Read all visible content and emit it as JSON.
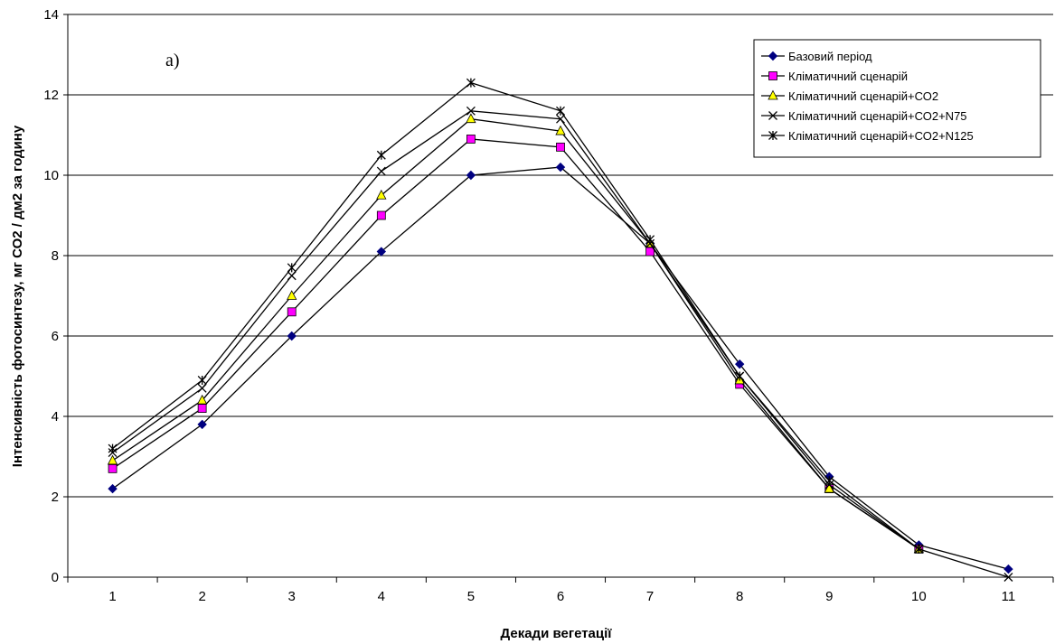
{
  "chart_data": {
    "type": "line",
    "panel_label": "а)",
    "xlabel": "Декади вегетації",
    "ylabel": "Інтенсивність фотосинтезу, мг СО2 / дм2 за годину",
    "categories": [
      "1",
      "2",
      "3",
      "4",
      "5",
      "6",
      "7",
      "8",
      "9",
      "10",
      "11"
    ],
    "ylim": [
      0,
      14
    ],
    "yticks": [
      "0",
      "2",
      "4",
      "6",
      "8",
      "10",
      "12",
      "14"
    ],
    "grid": "horizontal",
    "legend_position": "top-right",
    "series": [
      {
        "name": "Базовий період",
        "marker": "diamond",
        "color": "#000080",
        "values": [
          2.2,
          3.8,
          6.0,
          8.1,
          10.0,
          10.2,
          8.3,
          5.3,
          2.5,
          0.8,
          0.2
        ]
      },
      {
        "name": "Кліматичний сценарій",
        "marker": "square",
        "color": "#ff00ff",
        "values": [
          2.7,
          4.2,
          6.6,
          9.0,
          10.9,
          10.7,
          8.1,
          4.8,
          2.2,
          0.7,
          null
        ]
      },
      {
        "name": "Кліматичний сценарій+СО2",
        "marker": "triangle",
        "color": "#ffff00",
        "values": [
          2.9,
          4.4,
          7.0,
          9.5,
          11.4,
          11.1,
          8.3,
          4.9,
          2.2,
          0.7,
          null
        ]
      },
      {
        "name": "Кліматичний сценарій+СО2+N75",
        "marker": "x",
        "color": "#000000",
        "values": [
          3.1,
          4.7,
          7.5,
          10.1,
          11.6,
          11.4,
          8.3,
          5.0,
          2.3,
          0.7,
          0.0
        ]
      },
      {
        "name": "Кліматичний сценарій+СО2+N125",
        "marker": "star",
        "color": "#000000",
        "values": [
          3.2,
          4.9,
          7.7,
          10.5,
          12.3,
          11.6,
          8.4,
          5.0,
          2.4,
          0.7,
          null
        ]
      }
    ]
  }
}
